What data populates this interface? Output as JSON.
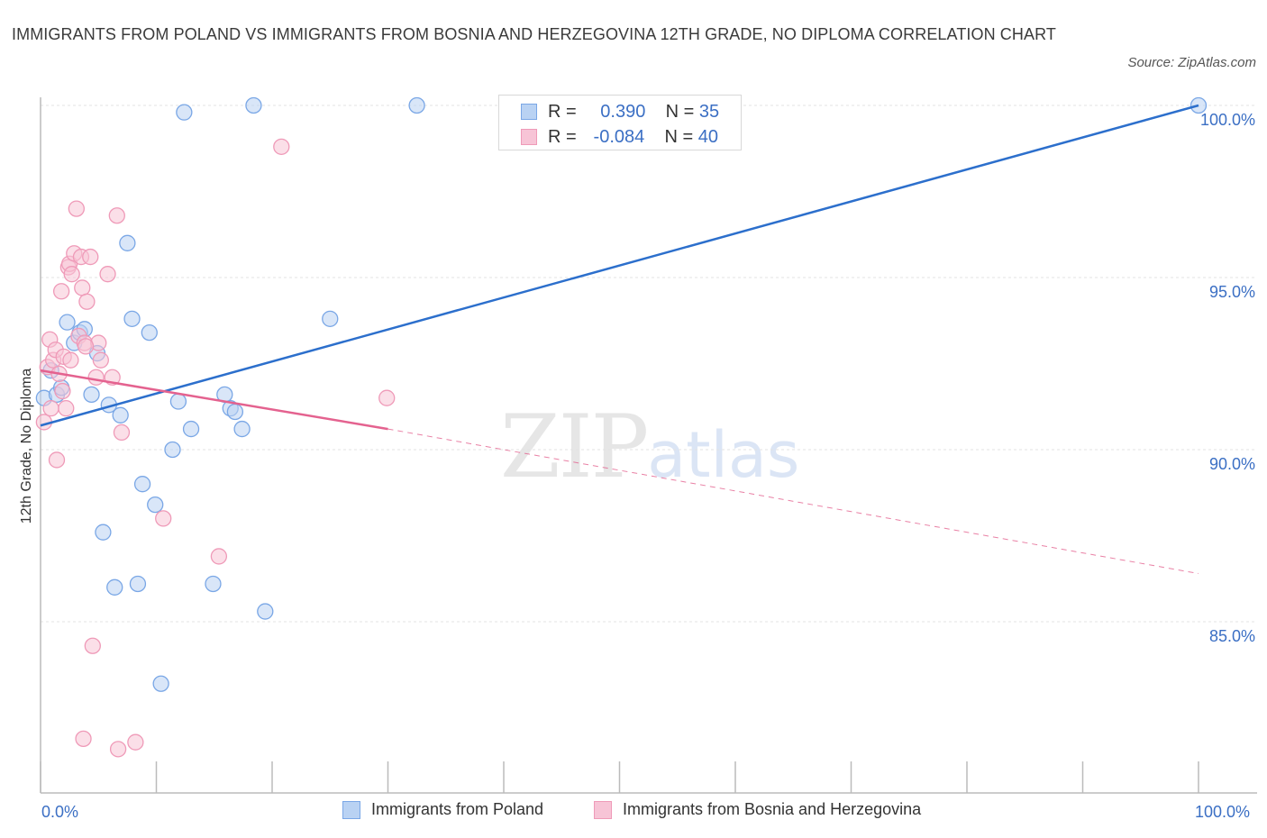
{
  "chart_data": {
    "type": "scatter",
    "title": "IMMIGRANTS FROM POLAND VS IMMIGRANTS FROM BOSNIA AND HERZEGOVINA 12TH GRADE, NO DIPLOMA CORRELATION CHART",
    "source": "Source: ZipAtlas.com",
    "xlabel": "",
    "ylabel": "12th Grade, No Diploma",
    "xlim": [
      0,
      100
    ],
    "ylim": [
      80.5,
      100.5
    ],
    "x_tick_labels": [
      "0.0%",
      "100.0%"
    ],
    "y_ticks": [
      85,
      90,
      95,
      100
    ],
    "y_tick_labels": [
      "85.0%",
      "90.0%",
      "95.0%",
      "100.0%"
    ],
    "grid": true,
    "legend_position": "top-center",
    "watermark": "ZIPatlas",
    "series": [
      {
        "name": "Immigrants from Poland",
        "color": "#7aa7e6",
        "fill": "#b9d2f3",
        "line_color": "#2c6fcc",
        "stats": {
          "r_label": "R =",
          "r": "0.390",
          "n_label": "N =",
          "n": "35"
        },
        "trend": {
          "x": [
            0,
            100
          ],
          "y": [
            90.7,
            100
          ]
        },
        "points": [
          [
            0.3,
            91.5
          ],
          [
            0.9,
            92.3
          ],
          [
            1.4,
            91.6
          ],
          [
            1.8,
            91.8
          ],
          [
            2.3,
            93.7
          ],
          [
            2.9,
            93.1
          ],
          [
            3.4,
            93.4
          ],
          [
            3.8,
            93.5
          ],
          [
            4.4,
            91.6
          ],
          [
            4.9,
            92.8
          ],
          [
            5.4,
            87.6
          ],
          [
            5.9,
            91.3
          ],
          [
            6.4,
            86.0
          ],
          [
            6.9,
            91.0
          ],
          [
            7.5,
            96.0
          ],
          [
            7.9,
            93.8
          ],
          [
            8.4,
            86.1
          ],
          [
            8.8,
            89.0
          ],
          [
            9.4,
            93.4
          ],
          [
            9.9,
            88.4
          ],
          [
            10.4,
            83.2
          ],
          [
            11.4,
            90.0
          ],
          [
            11.9,
            91.4
          ],
          [
            12.4,
            99.8
          ],
          [
            13.0,
            90.6
          ],
          [
            14.9,
            86.1
          ],
          [
            15.9,
            91.6
          ],
          [
            16.4,
            91.2
          ],
          [
            16.8,
            91.1
          ],
          [
            17.4,
            90.6
          ],
          [
            18.4,
            100.0
          ],
          [
            19.4,
            85.3
          ],
          [
            25.0,
            93.8
          ],
          [
            32.5,
            100.0
          ],
          [
            100.0,
            100.0
          ]
        ]
      },
      {
        "name": "Immigrants from Bosnia and Herzegovina",
        "color": "#ef9ab8",
        "fill": "#f7c4d6",
        "line_color": "#e4628f",
        "stats": {
          "r_label": "R =",
          "r": "-0.084",
          "n_label": "N =",
          "n": "40"
        },
        "trend": {
          "x": [
            0,
            30
          ],
          "y": [
            92.3,
            90.6
          ]
        },
        "trend_dashed": {
          "x": [
            30,
            100
          ],
          "y": [
            90.6,
            86.4
          ]
        },
        "points": [
          [
            0.3,
            90.8
          ],
          [
            0.6,
            92.4
          ],
          [
            0.8,
            93.2
          ],
          [
            1.1,
            92.6
          ],
          [
            1.3,
            92.9
          ],
          [
            1.4,
            89.7
          ],
          [
            1.6,
            92.2
          ],
          [
            1.8,
            94.6
          ],
          [
            1.9,
            91.7
          ],
          [
            2.0,
            92.7
          ],
          [
            2.2,
            91.2
          ],
          [
            2.4,
            95.3
          ],
          [
            2.5,
            95.4
          ],
          [
            2.7,
            95.1
          ],
          [
            2.9,
            95.7
          ],
          [
            3.1,
            97.0
          ],
          [
            3.3,
            93.3
          ],
          [
            3.5,
            95.6
          ],
          [
            3.6,
            94.7
          ],
          [
            3.8,
            93.1
          ],
          [
            4.0,
            94.3
          ],
          [
            4.3,
            95.6
          ],
          [
            4.5,
            84.3
          ],
          [
            4.8,
            92.1
          ],
          [
            5.0,
            93.1
          ],
          [
            5.2,
            92.6
          ],
          [
            5.8,
            95.1
          ],
          [
            6.2,
            92.1
          ],
          [
            6.6,
            96.8
          ],
          [
            7.0,
            90.5
          ],
          [
            10.6,
            88.0
          ],
          [
            15.4,
            86.9
          ],
          [
            20.8,
            98.8
          ],
          [
            29.9,
            91.5
          ],
          [
            3.7,
            81.6
          ],
          [
            6.7,
            81.3
          ],
          [
            8.2,
            81.5
          ],
          [
            0.9,
            91.2
          ],
          [
            2.6,
            92.6
          ],
          [
            3.9,
            93.0
          ]
        ]
      }
    ]
  }
}
